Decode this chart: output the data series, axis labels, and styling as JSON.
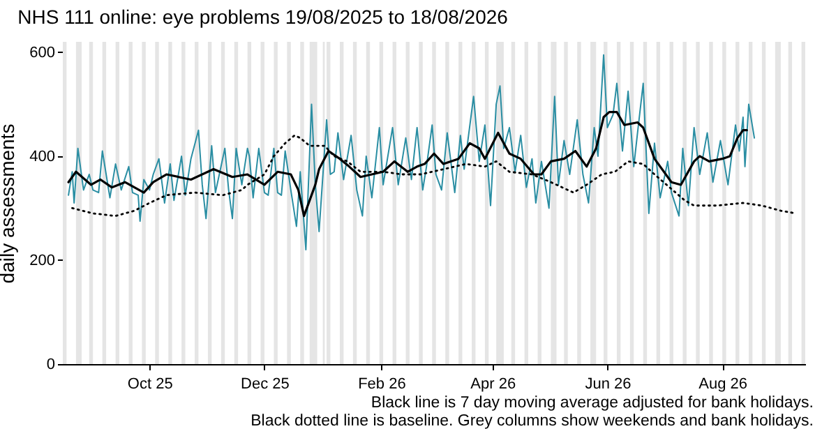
{
  "chart_data": {
    "type": "line",
    "title": "NHS 111 online: eye problems 19/08/2025 to 18/08/2026",
    "ylabel": "daily assessments",
    "xlim": [
      "2025-08-16",
      "2026-09-14"
    ],
    "xticks": [
      {
        "value": "2025-10-01",
        "label": "Oct 25"
      },
      {
        "value": "2025-12-01",
        "label": "Dec 25"
      },
      {
        "value": "2026-02-01",
        "label": "Feb 26"
      },
      {
        "value": "2026-04-01",
        "label": "Apr 26"
      },
      {
        "value": "2026-06-01",
        "label": "Jun 26"
      },
      {
        "value": "2026-08-01",
        "label": "Aug 26"
      }
    ],
    "ylim": [
      0,
      620
    ],
    "yticks": [
      0,
      200,
      400,
      600
    ],
    "series": [
      {
        "color": "#2a8ea3",
        "line_style": "solid",
        "x": [
          "2025-08-19",
          "2025-08-21",
          "2025-08-22",
          "2025-08-24",
          "2025-08-27",
          "2025-08-30",
          "2025-09-01",
          "2025-09-04",
          "2025-09-06",
          "2025-09-10",
          "2025-09-13",
          "2025-09-16",
          "2025-09-20",
          "2025-09-22",
          "2025-09-25",
          "2025-09-26",
          "2025-09-28",
          "2025-10-01",
          "2025-10-03",
          "2025-10-06",
          "2025-10-09",
          "2025-10-12",
          "2025-10-14",
          "2025-10-18",
          "2025-10-20",
          "2025-10-23",
          "2025-10-27",
          "2025-10-29",
          "2025-10-31",
          "2025-11-03",
          "2025-11-05",
          "2025-11-10",
          "2025-11-12",
          "2025-11-14",
          "2025-11-16",
          "2025-11-19",
          "2025-11-22",
          "2025-11-23",
          "2025-11-25",
          "2025-11-28",
          "2025-12-01",
          "2025-12-03",
          "2025-12-06",
          "2025-12-08",
          "2025-12-10",
          "2025-12-12",
          "2025-12-15",
          "2025-12-18",
          "2025-12-20",
          "2025-12-23",
          "2025-12-26",
          "2025-12-28",
          "2025-12-30",
          "2026-01-03",
          "2026-01-05",
          "2026-01-07",
          "2026-01-09",
          "2026-01-12",
          "2026-01-16",
          "2026-01-19",
          "2026-01-22",
          "2026-01-24",
          "2026-01-27",
          "2026-01-31",
          "2026-02-02",
          "2026-02-07",
          "2026-02-10",
          "2026-02-14",
          "2026-02-17",
          "2026-02-20",
          "2026-02-23",
          "2026-02-25",
          "2026-02-28",
          "2026-03-02",
          "2026-03-05",
          "2026-03-08",
          "2026-03-12",
          "2026-03-15",
          "2026-03-17",
          "2026-03-22",
          "2026-03-25",
          "2026-03-28",
          "2026-03-31",
          "2026-04-03",
          "2026-04-05",
          "2026-04-07",
          "2026-04-10",
          "2026-04-13",
          "2026-04-16",
          "2026-04-19",
          "2026-04-22",
          "2026-04-24",
          "2026-04-27",
          "2026-05-01",
          "2026-05-04",
          "2026-05-06",
          "2026-05-09",
          "2026-05-12",
          "2026-05-16",
          "2026-05-19",
          "2026-05-22",
          "2026-05-25",
          "2026-05-27",
          "2026-05-30",
          "2026-06-01",
          "2026-06-04",
          "2026-06-06",
          "2026-06-09",
          "2026-06-12",
          "2026-06-15",
          "2026-06-17",
          "2026-06-20",
          "2026-06-23",
          "2026-06-26",
          "2026-06-29",
          "2026-07-03",
          "2026-07-05",
          "2026-07-09",
          "2026-07-11",
          "2026-07-14",
          "2026-07-17",
          "2026-07-20",
          "2026-07-24",
          "2026-07-27",
          "2026-07-31",
          "2026-08-04",
          "2026-08-08",
          "2026-08-10",
          "2026-08-12",
          "2026-08-13",
          "2026-08-15",
          "2026-08-18"
        ],
        "values": [
          325,
          370,
          310,
          415,
          335,
          365,
          335,
          330,
          410,
          320,
          385,
          335,
          380,
          330,
          325,
          275,
          355,
          335,
          365,
          395,
          310,
          385,
          315,
          400,
          325,
          395,
          450,
          345,
          280,
          420,
          330,
          415,
          335,
          280,
          415,
          345,
          415,
          400,
          320,
          415,
          330,
          325,
          415,
          330,
          325,
          410,
          335,
          265,
          370,
          220,
          500,
          345,
          255,
          470,
          365,
          370,
          445,
          355,
          440,
          335,
          285,
          400,
          320,
          455,
          345,
          455,
          345,
          435,
          355,
          455,
          335,
          380,
          460,
          365,
          335,
          445,
          330,
          440,
          375,
          515,
          390,
          460,
          305,
          500,
          535,
          415,
          455,
          370,
          440,
          340,
          395,
          310,
          390,
          300,
          515,
          345,
          430,
          365,
          470,
          365,
          310,
          455,
          400,
          595,
          455,
          480,
          540,
          410,
          525,
          380,
          445,
          540,
          290,
          425,
          320,
          390,
          330,
          285,
          415,
          305,
          455,
          365,
          445,
          350,
          430,
          345,
          460,
          410,
          475,
          380,
          500,
          435
        ]
      },
      {
        "color": "#000000",
        "line_style": "solid",
        "x": [
          "2025-08-19",
          "2025-08-23",
          "2025-08-31",
          "2025-09-05",
          "2025-09-11",
          "2025-09-18",
          "2025-09-28",
          "2025-10-03",
          "2025-10-10",
          "2025-10-23",
          "2025-11-04",
          "2025-11-14",
          "2025-11-22",
          "2025-12-01",
          "2025-12-08",
          "2025-12-15",
          "2025-12-19",
          "2025-12-22",
          "2025-12-28",
          "2025-12-30",
          "2026-01-04",
          "2026-01-10",
          "2026-01-15",
          "2026-01-21",
          "2026-01-27",
          "2026-02-02",
          "2026-02-08",
          "2026-02-15",
          "2026-02-20",
          "2026-02-24",
          "2026-03-01",
          "2026-03-06",
          "2026-03-14",
          "2026-03-20",
          "2026-03-25",
          "2026-03-28",
          "2026-04-04",
          "2026-04-10",
          "2026-04-16",
          "2026-04-23",
          "2026-04-27",
          "2026-05-02",
          "2026-05-09",
          "2026-05-15",
          "2026-05-21",
          "2026-05-26",
          "2026-05-30",
          "2026-06-02",
          "2026-06-06",
          "2026-06-10",
          "2026-06-17",
          "2026-06-20",
          "2026-06-26",
          "2026-07-01",
          "2026-07-05",
          "2026-07-10",
          "2026-07-17",
          "2026-07-20",
          "2026-07-25",
          "2026-08-01",
          "2026-08-05",
          "2026-08-09",
          "2026-08-12",
          "2026-08-14"
        ],
        "values": [
          350,
          370,
          345,
          355,
          340,
          350,
          330,
          350,
          365,
          355,
          375,
          360,
          365,
          345,
          370,
          365,
          335,
          285,
          345,
          375,
          410,
          395,
          380,
          360,
          365,
          370,
          390,
          370,
          380,
          385,
          405,
          385,
          395,
          425,
          415,
          395,
          445,
          405,
          395,
          365,
          365,
          390,
          395,
          410,
          380,
          415,
          475,
          485,
          485,
          460,
          465,
          455,
          395,
          370,
          350,
          345,
          390,
          400,
          390,
          395,
          400,
          435,
          450,
          450
        ]
      },
      {
        "color": "#000000",
        "line_style": "dotted",
        "x": [
          "2025-08-21",
          "2025-09-01",
          "2025-09-13",
          "2025-09-23",
          "2025-10-01",
          "2025-10-10",
          "2025-10-25",
          "2025-11-09",
          "2025-11-19",
          "2025-11-22",
          "2025-12-01",
          "2025-12-06",
          "2025-12-12",
          "2025-12-17",
          "2025-12-20",
          "2025-12-25",
          "2026-01-02",
          "2026-01-07",
          "2026-01-14",
          "2026-01-21",
          "2026-02-02",
          "2026-02-12",
          "2026-02-22",
          "2026-03-06",
          "2026-03-18",
          "2026-03-28",
          "2026-04-03",
          "2026-04-10",
          "2026-04-22",
          "2026-05-02",
          "2026-05-14",
          "2026-05-21",
          "2026-05-29",
          "2026-06-05",
          "2026-06-12",
          "2026-06-20",
          "2026-06-26",
          "2026-07-04",
          "2026-07-12",
          "2026-07-17",
          "2026-07-29",
          "2026-08-12",
          "2026-08-22",
          "2026-09-01",
          "2026-09-09"
        ],
        "values": [
          300,
          290,
          285,
          295,
          310,
          325,
          330,
          325,
          335,
          345,
          365,
          400,
          425,
          440,
          435,
          420,
          420,
          400,
          390,
          370,
          370,
          365,
          365,
          375,
          385,
          380,
          390,
          370,
          365,
          350,
          330,
          345,
          365,
          370,
          390,
          385,
          365,
          340,
          315,
          305,
          305,
          310,
          305,
          295,
          290
        ]
      }
    ],
    "bands": [
      {
        "axis": "x",
        "from": "2025-08-16",
        "to": "2025-08-18",
        "color": "#e5e5e5"
      },
      {
        "axis": "x",
        "from": "2025-08-23",
        "to": "2025-08-26",
        "color": "#e5e5e5"
      },
      {
        "axis": "x",
        "from": "2025-08-30",
        "to": "2025-09-01",
        "color": "#e5e5e5"
      },
      {
        "axis": "x",
        "from": "2025-09-06",
        "to": "2025-09-08",
        "color": "#e5e5e5"
      },
      {
        "axis": "x",
        "from": "2025-09-13",
        "to": "2025-09-15",
        "color": "#e5e5e5"
      },
      {
        "axis": "x",
        "from": "2025-09-20",
        "to": "2025-09-22",
        "color": "#e5e5e5"
      },
      {
        "axis": "x",
        "from": "2025-09-27",
        "to": "2025-09-29",
        "color": "#e5e5e5"
      },
      {
        "axis": "x",
        "from": "2025-10-04",
        "to": "2025-10-06",
        "color": "#e5e5e5"
      },
      {
        "axis": "x",
        "from": "2025-10-11",
        "to": "2025-10-13",
        "color": "#e5e5e5"
      },
      {
        "axis": "x",
        "from": "2025-10-18",
        "to": "2025-10-20",
        "color": "#e5e5e5"
      },
      {
        "axis": "x",
        "from": "2025-10-25",
        "to": "2025-10-27",
        "color": "#e5e5e5"
      },
      {
        "axis": "x",
        "from": "2025-11-01",
        "to": "2025-11-03",
        "color": "#e5e5e5"
      },
      {
        "axis": "x",
        "from": "2025-11-08",
        "to": "2025-11-10",
        "color": "#e5e5e5"
      },
      {
        "axis": "x",
        "from": "2025-11-15",
        "to": "2025-11-17",
        "color": "#e5e5e5"
      },
      {
        "axis": "x",
        "from": "2025-11-22",
        "to": "2025-11-24",
        "color": "#e5e5e5"
      },
      {
        "axis": "x",
        "from": "2025-11-29",
        "to": "2025-12-01",
        "color": "#e5e5e5"
      },
      {
        "axis": "x",
        "from": "2025-12-06",
        "to": "2025-12-08",
        "color": "#e5e5e5"
      },
      {
        "axis": "x",
        "from": "2025-12-13",
        "to": "2025-12-15",
        "color": "#e5e5e5"
      },
      {
        "axis": "x",
        "from": "2025-12-20",
        "to": "2025-12-22",
        "color": "#e5e5e5"
      },
      {
        "axis": "x",
        "from": "2025-12-25",
        "to": "2025-12-29",
        "color": "#e5e5e5"
      },
      {
        "axis": "x",
        "from": "2026-01-01",
        "to": "2026-01-02",
        "color": "#e5e5e5"
      },
      {
        "axis": "x",
        "from": "2026-01-03",
        "to": "2026-01-05",
        "color": "#e5e5e5"
      },
      {
        "axis": "x",
        "from": "2026-01-10",
        "to": "2026-01-12",
        "color": "#e5e5e5"
      },
      {
        "axis": "x",
        "from": "2026-01-17",
        "to": "2026-01-19",
        "color": "#e5e5e5"
      },
      {
        "axis": "x",
        "from": "2026-01-24",
        "to": "2026-01-26",
        "color": "#e5e5e5"
      },
      {
        "axis": "x",
        "from": "2026-01-31",
        "to": "2026-02-02",
        "color": "#e5e5e5"
      },
      {
        "axis": "x",
        "from": "2026-02-07",
        "to": "2026-02-09",
        "color": "#e5e5e5"
      },
      {
        "axis": "x",
        "from": "2026-02-14",
        "to": "2026-02-16",
        "color": "#e5e5e5"
      },
      {
        "axis": "x",
        "from": "2026-02-21",
        "to": "2026-02-23",
        "color": "#e5e5e5"
      },
      {
        "axis": "x",
        "from": "2026-02-28",
        "to": "2026-03-02",
        "color": "#e5e5e5"
      },
      {
        "axis": "x",
        "from": "2026-03-07",
        "to": "2026-03-09",
        "color": "#e5e5e5"
      },
      {
        "axis": "x",
        "from": "2026-03-14",
        "to": "2026-03-16",
        "color": "#e5e5e5"
      },
      {
        "axis": "x",
        "from": "2026-03-21",
        "to": "2026-03-23",
        "color": "#e5e5e5"
      },
      {
        "axis": "x",
        "from": "2026-03-28",
        "to": "2026-03-30",
        "color": "#e5e5e5"
      },
      {
        "axis": "x",
        "from": "2026-04-03",
        "to": "2026-04-07",
        "color": "#e5e5e5"
      },
      {
        "axis": "x",
        "from": "2026-04-11",
        "to": "2026-04-13",
        "color": "#e5e5e5"
      },
      {
        "axis": "x",
        "from": "2026-04-18",
        "to": "2026-04-20",
        "color": "#e5e5e5"
      },
      {
        "axis": "x",
        "from": "2026-04-25",
        "to": "2026-04-27",
        "color": "#e5e5e5"
      },
      {
        "axis": "x",
        "from": "2026-05-02",
        "to": "2026-05-05",
        "color": "#e5e5e5"
      },
      {
        "axis": "x",
        "from": "2026-05-09",
        "to": "2026-05-11",
        "color": "#e5e5e5"
      },
      {
        "axis": "x",
        "from": "2026-05-16",
        "to": "2026-05-18",
        "color": "#e5e5e5"
      },
      {
        "axis": "x",
        "from": "2026-05-23",
        "to": "2026-05-26",
        "color": "#e5e5e5"
      },
      {
        "axis": "x",
        "from": "2026-05-30",
        "to": "2026-06-01",
        "color": "#e5e5e5"
      },
      {
        "axis": "x",
        "from": "2026-06-06",
        "to": "2026-06-08",
        "color": "#e5e5e5"
      },
      {
        "axis": "x",
        "from": "2026-06-13",
        "to": "2026-06-15",
        "color": "#e5e5e5"
      },
      {
        "axis": "x",
        "from": "2026-06-20",
        "to": "2026-06-22",
        "color": "#e5e5e5"
      },
      {
        "axis": "x",
        "from": "2026-06-27",
        "to": "2026-06-29",
        "color": "#e5e5e5"
      },
      {
        "axis": "x",
        "from": "2026-07-04",
        "to": "2026-07-06",
        "color": "#e5e5e5"
      },
      {
        "axis": "x",
        "from": "2026-07-11",
        "to": "2026-07-13",
        "color": "#e5e5e5"
      },
      {
        "axis": "x",
        "from": "2026-07-18",
        "to": "2026-07-20",
        "color": "#e5e5e5"
      },
      {
        "axis": "x",
        "from": "2026-07-25",
        "to": "2026-07-27",
        "color": "#e5e5e5"
      },
      {
        "axis": "x",
        "from": "2026-08-01",
        "to": "2026-08-03",
        "color": "#e5e5e5"
      },
      {
        "axis": "x",
        "from": "2026-08-08",
        "to": "2026-08-10",
        "color": "#e5e5e5"
      },
      {
        "axis": "x",
        "from": "2026-08-15",
        "to": "2026-08-17",
        "color": "#e5e5e5"
      },
      {
        "axis": "x",
        "from": "2026-08-22",
        "to": "2026-08-24",
        "color": "#e5e5e5"
      },
      {
        "axis": "x",
        "from": "2026-08-29",
        "to": "2026-09-01",
        "color": "#e5e5e5"
      },
      {
        "axis": "x",
        "from": "2026-09-05",
        "to": "2026-09-07",
        "color": "#e5e5e5"
      },
      {
        "axis": "x",
        "from": "2026-09-12",
        "to": "2026-09-14",
        "color": "#e5e5e5"
      }
    ],
    "annotations": [
      "Black line is 7 day moving average adjusted for bank holidays.",
      "Black dotted line is baseline. Grey columns show weekends and bank holidays."
    ]
  }
}
